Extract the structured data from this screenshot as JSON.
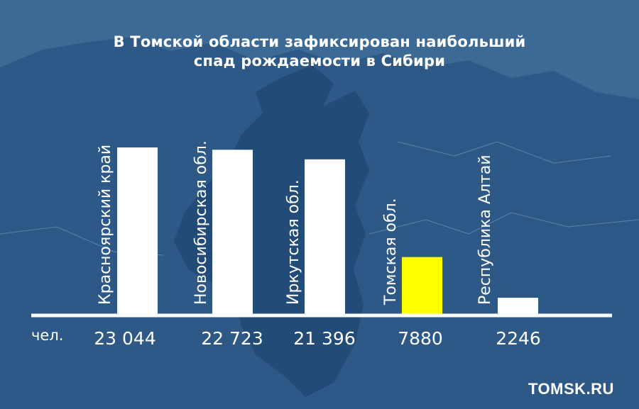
{
  "title_lines": [
    "В Томской области зафиксирован наибольший",
    "спад рождаемости в Сибири"
  ],
  "unit_label": "чел.",
  "brand": "TOMSK.RU",
  "colors": {
    "background": "#3d6a94",
    "map_land": "#2e5986",
    "map_region": "#224b77",
    "bar_default": "#ffffff",
    "bar_highlight": "#ffff00",
    "text": "#ffffff"
  },
  "chart_data": {
    "type": "bar",
    "title": "В Томской области зафиксирован наибольший спад рождаемости в Сибири",
    "unit": "чел.",
    "categories": [
      "Красноярский край",
      "Новосибирская обл.",
      "Иркутская обл.",
      "Томская обл.",
      "Республика Алтай"
    ],
    "values": [
      23044,
      22723,
      21396,
      7880,
      2246
    ],
    "value_labels": [
      "23 044",
      "22 723",
      "21 396",
      "7880",
      "2246"
    ],
    "highlight_index": 3,
    "ylim": [
      0,
      23044
    ],
    "grid": false,
    "legend": "none"
  }
}
